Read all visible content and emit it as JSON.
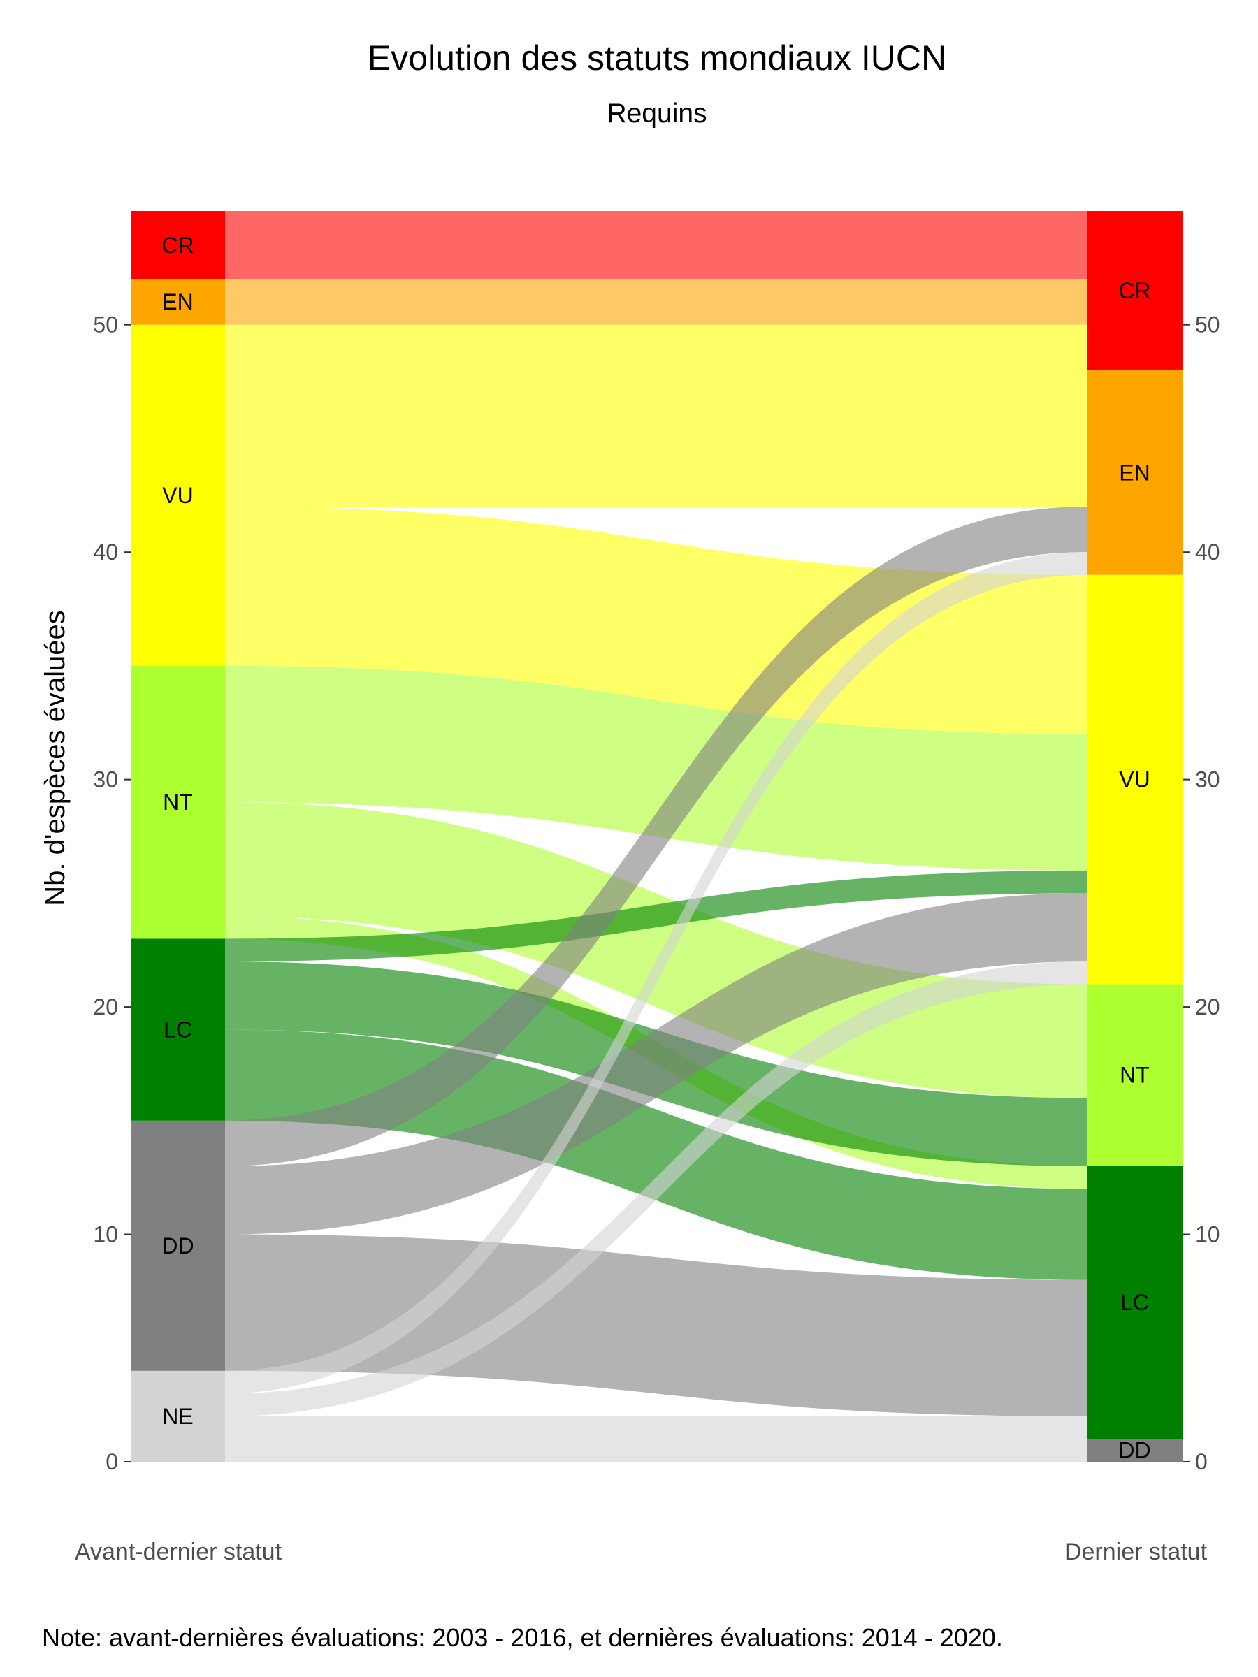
{
  "chart_data": {
    "type": "alluvial",
    "title": "Evolution des statuts mondiaux IUCN",
    "subtitle": "Requins",
    "ylabel": "Nb. d'espèces évaluées",
    "ylim": [
      0,
      55
    ],
    "yticks": [
      0,
      10,
      20,
      30,
      40,
      50
    ],
    "axes": [
      {
        "label": "Avant-dernier statut",
        "strata": [
          {
            "name": "CR",
            "value": 3
          },
          {
            "name": "EN",
            "value": 2
          },
          {
            "name": "VU",
            "value": 15
          },
          {
            "name": "NT",
            "value": 12
          },
          {
            "name": "LC",
            "value": 8
          },
          {
            "name": "DD",
            "value": 11
          },
          {
            "name": "NE",
            "value": 4
          }
        ]
      },
      {
        "label": "Dernier statut",
        "strata": [
          {
            "name": "CR",
            "value": 7
          },
          {
            "name": "EN",
            "value": 9
          },
          {
            "name": "VU",
            "value": 18
          },
          {
            "name": "NT",
            "value": 8
          },
          {
            "name": "LC",
            "value": 12
          },
          {
            "name": "DD",
            "value": 1
          }
        ]
      }
    ],
    "flows": [
      {
        "from": "CR",
        "to": "CR",
        "value": 3
      },
      {
        "from": "EN",
        "to": "CR",
        "value": 2
      },
      {
        "from": "VU",
        "to": "CR",
        "value": 2
      },
      {
        "from": "VU",
        "to": "EN",
        "value": 6
      },
      {
        "from": "VU",
        "to": "VU",
        "value": 7
      },
      {
        "from": "NT",
        "to": "VU",
        "value": 6
      },
      {
        "from": "NT",
        "to": "NT",
        "value": 5
      },
      {
        "from": "NT",
        "to": "LC",
        "value": 1
      },
      {
        "from": "LC",
        "to": "VU",
        "value": 1
      },
      {
        "from": "LC",
        "to": "NT",
        "value": 3
      },
      {
        "from": "LC",
        "to": "LC",
        "value": 4
      },
      {
        "from": "DD",
        "to": "EN",
        "value": 2
      },
      {
        "from": "DD",
        "to": "VU",
        "value": 3
      },
      {
        "from": "DD",
        "to": "LC",
        "value": 6
      },
      {
        "from": "NE",
        "to": "EN",
        "value": 1
      },
      {
        "from": "NE",
        "to": "VU",
        "value": 1
      },
      {
        "from": "DD",
        "to": "DD",
        "value": 0
      },
      {
        "from": "NE",
        "to": "LC",
        "value": 1
      },
      {
        "from": "NE",
        "to": "DD",
        "value": 1
      }
    ],
    "colors": {
      "CR": "#ff0000",
      "EN": "#ffa500",
      "VU": "#ffff00",
      "NT": "#adff2f",
      "LC": "#008000",
      "DD": "#808080",
      "NE": "#d3d3d3"
    },
    "note": "Note: avant-dernières évaluations: 2003 - 2016, et dernières évaluations: 2014 - 2020."
  }
}
